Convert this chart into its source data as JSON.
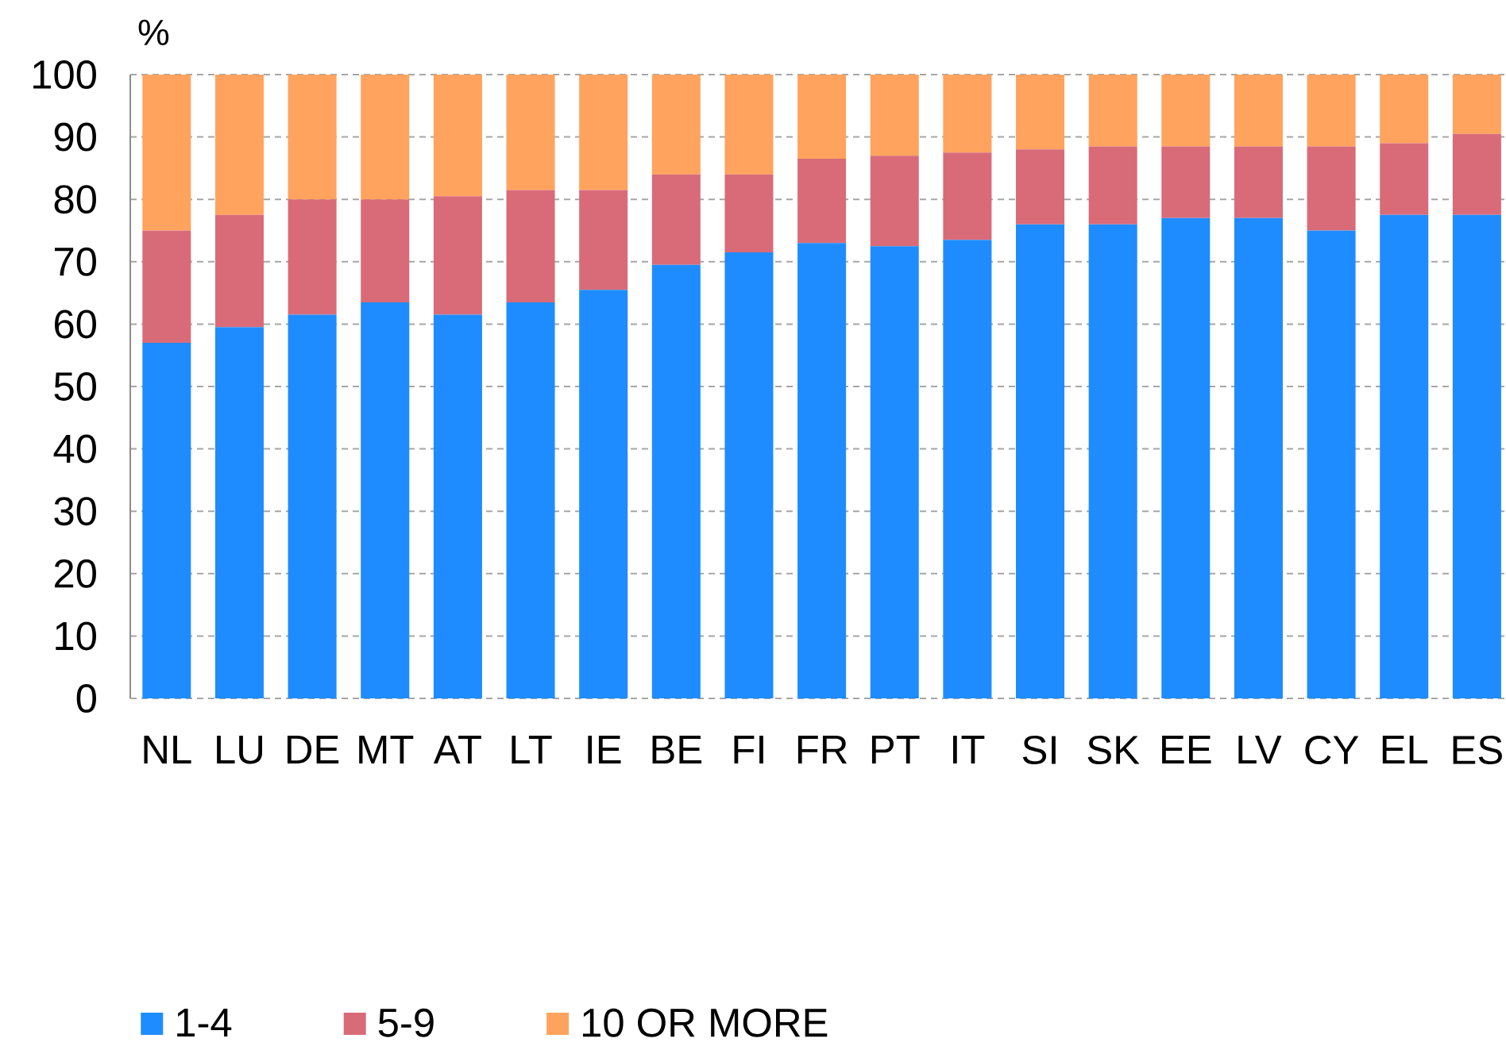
{
  "chart_data": {
    "type": "bar",
    "stacked": true,
    "ylabel": "%",
    "categories": [
      "NL",
      "LU",
      "DE",
      "MT",
      "AT",
      "LT",
      "IE",
      "BE",
      "FI",
      "FR",
      "PT",
      "IT",
      "SI",
      "SK",
      "EE",
      "LV",
      "CY",
      "EL",
      "ES"
    ],
    "series": [
      {
        "name": "1-4",
        "color": "#1e8cff",
        "values": [
          57,
          59.5,
          61.5,
          63.5,
          61.5,
          63.5,
          65.5,
          69.5,
          71.5,
          73,
          72.5,
          73.5,
          76,
          76,
          77,
          77,
          75,
          77.5,
          77.5
        ]
      },
      {
        "name": "5-9",
        "color": "#d96b79",
        "values": [
          18,
          18,
          18.5,
          16.5,
          19,
          18,
          16,
          14.5,
          12.5,
          13.5,
          14.5,
          14,
          12,
          12.5,
          11.5,
          11.5,
          13.5,
          11.5,
          13
        ]
      },
      {
        "name": "10 OR MORE",
        "color": "#ffa35e",
        "values": [
          25,
          22.5,
          20,
          20,
          19.5,
          18.5,
          18.5,
          16,
          16,
          13.5,
          13,
          12.5,
          12,
          11.5,
          11.5,
          11.5,
          11.5,
          11,
          9.5
        ]
      }
    ],
    "ylim": [
      0,
      100
    ],
    "yticks": [
      0,
      10,
      20,
      30,
      40,
      50,
      60,
      70,
      80,
      90,
      100
    ],
    "grid": "y",
    "legend": "bottom left"
  }
}
